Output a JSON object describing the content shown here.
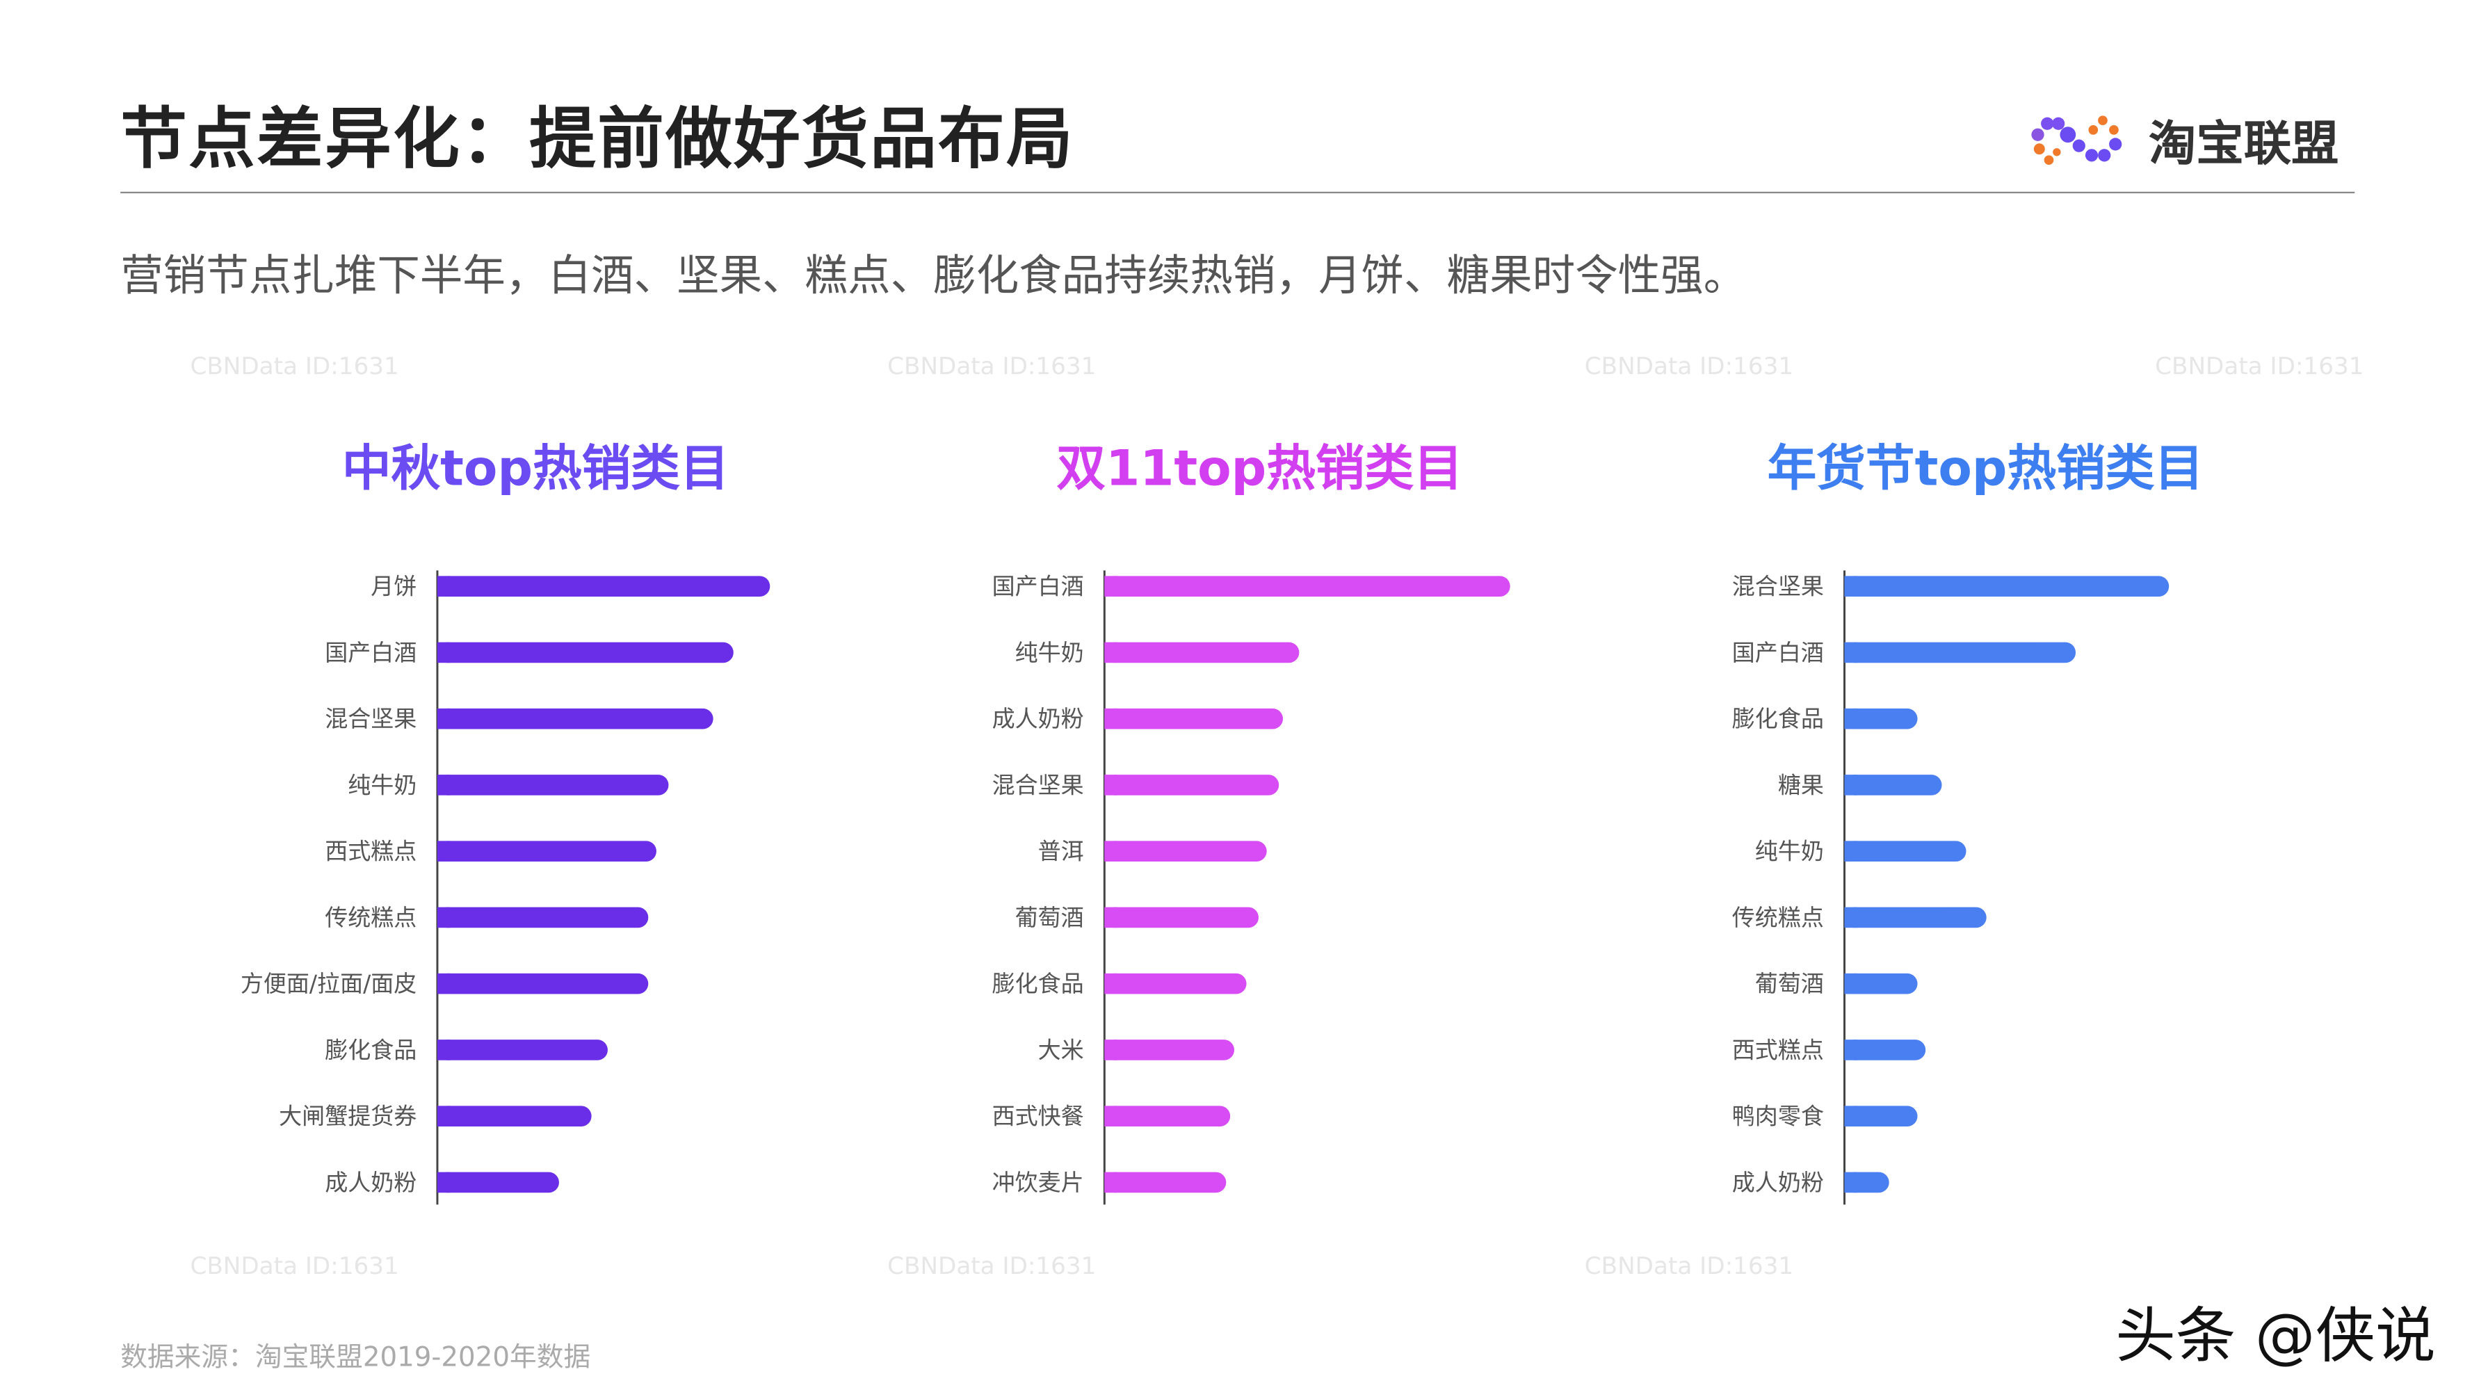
{
  "header": {
    "title": "节点差异化：提前做好货品布局",
    "subtitle": "营销节点扎堆下半年，白酒、坚果、糕点、膨化食品持续热销，月饼、糖果时令性强。",
    "logo_text": "淘宝联盟"
  },
  "footer": {
    "source": "数据来源：淘宝联盟2019-2020年数据",
    "credit": "头条 @侠说"
  },
  "watermark": "CBNData ID:1631",
  "chart_data": [
    {
      "type": "bar",
      "orientation": "horizontal",
      "title": "中秋top热销类目",
      "title_color": "#6a4cf2",
      "bar_color": "#6a2ee8",
      "categories": [
        "月饼",
        "国产白酒",
        "混合坚果",
        "纯牛奶",
        "西式糕点",
        "传统糕点",
        "方便面/拉面/面皮",
        "膨化食品",
        "大闸蟹提货券",
        "成人奶粉"
      ],
      "values": [
        82,
        73,
        68,
        57,
        54,
        52,
        52,
        42,
        38,
        30
      ],
      "value_axis_shown": false
    },
    {
      "type": "bar",
      "orientation": "horizontal",
      "title": "双11top热销类目",
      "title_color": "#d23ff0",
      "bar_color": "#d84cf6",
      "categories": [
        "国产白酒",
        "纯牛奶",
        "成人奶粉",
        "混合坚果",
        "普洱",
        "葡萄酒",
        "膨化食品",
        "大米",
        "西式快餐",
        "冲饮麦片"
      ],
      "values": [
        100,
        48,
        44,
        43,
        40,
        38,
        35,
        32,
        31,
        30
      ],
      "value_axis_shown": false
    },
    {
      "type": "bar",
      "orientation": "horizontal",
      "title": "年货节top热销类目",
      "title_color": "#3d7ef0",
      "bar_color": "#4a7ff2",
      "categories": [
        "混合坚果",
        "国产白酒",
        "膨化食品",
        "糖果",
        "纯牛奶",
        "传统糕点",
        "葡萄酒",
        "西式糕点",
        "鸭肉零食",
        "成人奶粉"
      ],
      "values": [
        80,
        57,
        18,
        24,
        30,
        35,
        18,
        20,
        18,
        11
      ],
      "value_axis_shown": false
    }
  ]
}
